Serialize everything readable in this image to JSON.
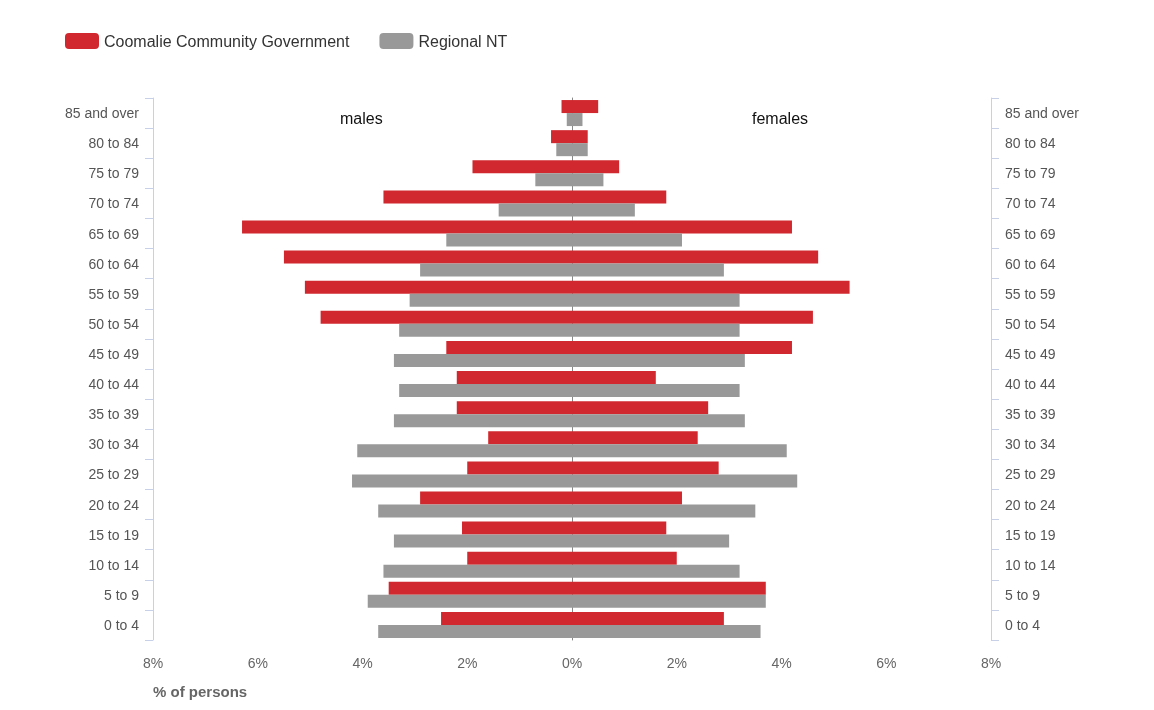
{
  "chart_data": [
    {
      "type": "bar",
      "orientation": "horizontal",
      "xlabel": "% of persons",
      "annotations": [
        "males"
      ],
      "categories": [
        "85 and over",
        "80 to 84",
        "75 to 79",
        "70 to 74",
        "65 to 69",
        "60 to 64",
        "55 to 59",
        "50 to 54",
        "45 to 49",
        "40 to 44",
        "35 to 39",
        "30 to 34",
        "25 to 29",
        "20 to 24",
        "15 to 19",
        "10 to 14",
        "5 to 9",
        "0 to 4"
      ],
      "series": [
        {
          "name": "Coomalie Community Government",
          "color": "#d0282e",
          "values": [
            0.2,
            0.4,
            1.9,
            3.6,
            6.3,
            5.5,
            5.1,
            4.8,
            2.4,
            2.2,
            2.2,
            1.6,
            2.0,
            2.9,
            2.1,
            2.0,
            3.5,
            2.5
          ]
        },
        {
          "name": "Regional NT",
          "color": "#999999",
          "values": [
            0.1,
            0.3,
            0.7,
            1.4,
            2.4,
            2.9,
            3.1,
            3.3,
            3.4,
            3.3,
            3.4,
            4.1,
            4.2,
            3.7,
            3.4,
            3.6,
            3.9,
            3.7
          ]
        }
      ],
      "xlim": [
        8,
        0
      ],
      "xticks": [
        {
          "value": 8,
          "label": "8%"
        },
        {
          "value": 6,
          "label": "6%"
        },
        {
          "value": 4,
          "label": "4%"
        },
        {
          "value": 2,
          "label": "2%"
        },
        {
          "value": 0,
          "label": "0%"
        }
      ],
      "legend": "top left"
    },
    {
      "type": "bar",
      "orientation": "horizontal",
      "annotations": [
        "females"
      ],
      "categories": [
        "85 and over",
        "80 to 84",
        "75 to 79",
        "70 to 74",
        "65 to 69",
        "60 to 64",
        "55 to 59",
        "50 to 54",
        "45 to 49",
        "40 to 44",
        "35 to 39",
        "30 to 34",
        "25 to 29",
        "20 to 24",
        "15 to 19",
        "10 to 14",
        "5 to 9",
        "0 to 4"
      ],
      "series": [
        {
          "color": "#d0282e",
          "values": [
            0.5,
            0.3,
            0.9,
            1.8,
            4.2,
            4.7,
            5.3,
            4.6,
            4.2,
            1.6,
            2.6,
            2.4,
            2.8,
            2.1,
            1.8,
            2.0,
            3.7,
            2.9
          ]
        },
        {
          "color": "#999999",
          "values": [
            0.2,
            0.3,
            0.6,
            1.2,
            2.1,
            2.9,
            3.2,
            3.2,
            3.3,
            3.2,
            3.3,
            4.1,
            4.3,
            3.5,
            3.0,
            3.2,
            3.7,
            3.6
          ]
        }
      ],
      "xlim": [
        0,
        8
      ],
      "xticks": [
        {
          "value": 0,
          "label": null
        },
        {
          "value": 2,
          "label": "2%"
        },
        {
          "value": 4,
          "label": "4%"
        },
        {
          "value": 6,
          "label": "6%"
        },
        {
          "value": 8,
          "label": "8%"
        }
      ]
    }
  ]
}
